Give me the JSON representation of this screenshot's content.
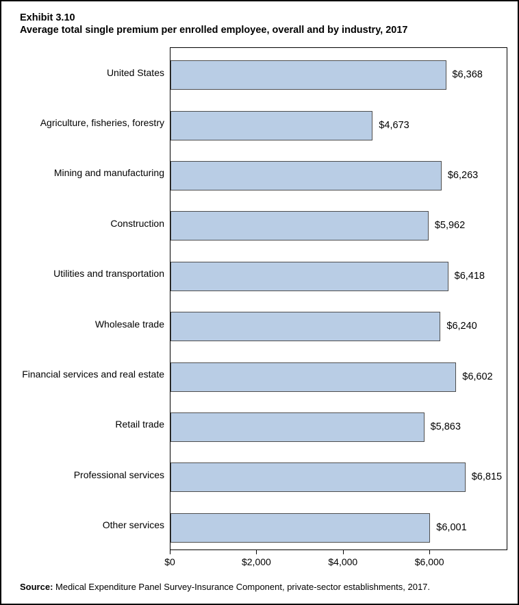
{
  "title": {
    "line1": "Exhibit 3.10",
    "line2": "Average total single premium per enrolled employee, overall and by industry, 2017"
  },
  "source": {
    "label": "Source:",
    "text": " Medical Expenditure Panel Survey-Insurance Component, private-sector establishments, 2017."
  },
  "colors": {
    "bar_fill": "#b9cde5",
    "bar_border": "#4d4d4d",
    "frame_border": "#000000"
  },
  "chart_data": {
    "type": "bar",
    "orientation": "horizontal",
    "title": "Average total single premium per enrolled employee, overall and by industry, 2017",
    "categories": [
      "United States",
      "Agriculture, fisheries, forestry",
      "Mining and manufacturing",
      "Construction",
      "Utilities and transportation",
      "Wholesale trade",
      "Financial services and real estate",
      "Retail trade",
      "Professional services",
      "Other services"
    ],
    "values": [
      6368,
      4673,
      6263,
      5962,
      6418,
      6240,
      6602,
      5863,
      6815,
      6001
    ],
    "value_labels": [
      "$6,368",
      "$4,673",
      "$6,263",
      "$5,962",
      "$6,418",
      "$6,240",
      "$6,602",
      "$5,863",
      "$6,815",
      "$6,001"
    ],
    "xlabel": "",
    "ylabel": "",
    "xlim": [
      0,
      7800
    ],
    "xticks": {
      "values": [
        0,
        2000,
        4000,
        6000
      ],
      "labels": [
        "$0",
        "$2,000",
        "$4,000",
        "$6,000"
      ]
    },
    "grid": false,
    "legend": null
  }
}
